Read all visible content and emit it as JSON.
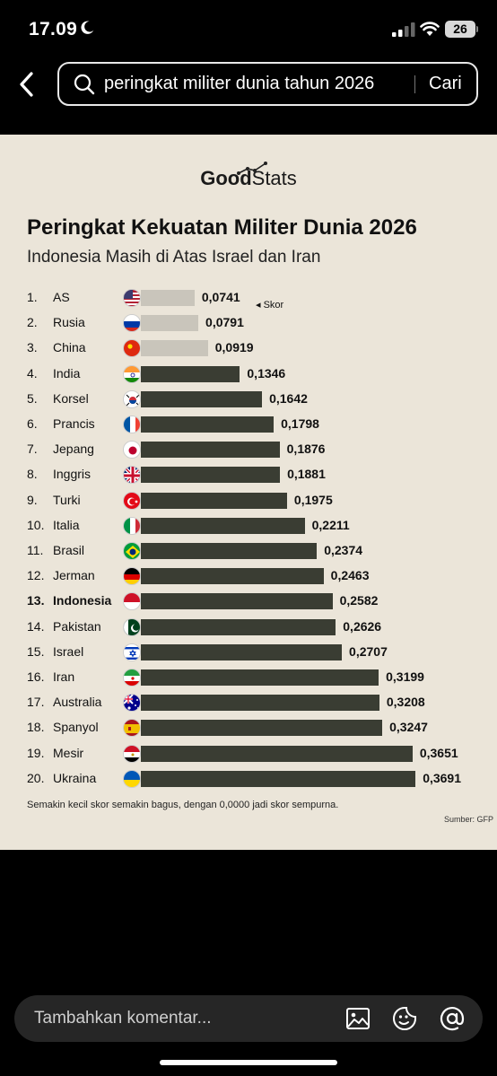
{
  "status_bar": {
    "time": "17.09",
    "battery": "26"
  },
  "search": {
    "query": "peringkat militer dunia tahun 2026",
    "button": "Cari"
  },
  "infographic": {
    "logo": "GoodStats",
    "logo_bold": "Good",
    "logo_light": "Stats",
    "title": "Peringkat Kekuatan Militer Dunia 2026",
    "subtitle": "Indonesia Masih di Atas Israel dan Iran",
    "skor_label": "◂ Skor",
    "footnote": "Semakin kecil skor semakin bagus, dengan 0,0000 jadi skor sempurna.",
    "source": "Sumber: GFP",
    "bar_color": "#3a3d33",
    "light_bar_color": "#c9c5bb",
    "rows": [
      {
        "rank": "1.",
        "name": "AS",
        "score": "0,0741",
        "value": 0.0741,
        "flag": "us"
      },
      {
        "rank": "2.",
        "name": "Rusia",
        "score": "0,0791",
        "value": 0.0791,
        "flag": "ru"
      },
      {
        "rank": "3.",
        "name": "China",
        "score": "0,0919",
        "value": 0.0919,
        "flag": "cn"
      },
      {
        "rank": "4.",
        "name": "India",
        "score": "0,1346",
        "value": 0.1346,
        "flag": "in"
      },
      {
        "rank": "5.",
        "name": "Korsel",
        "score": "0,1642",
        "value": 0.1642,
        "flag": "kr"
      },
      {
        "rank": "6.",
        "name": "Prancis",
        "score": "0,1798",
        "value": 0.1798,
        "flag": "fr"
      },
      {
        "rank": "7.",
        "name": "Jepang",
        "score": "0,1876",
        "value": 0.1876,
        "flag": "jp"
      },
      {
        "rank": "8.",
        "name": "Inggris",
        "score": "0,1881",
        "value": 0.1881,
        "flag": "gb"
      },
      {
        "rank": "9.",
        "name": "Turki",
        "score": "0,1975",
        "value": 0.1975,
        "flag": "tr"
      },
      {
        "rank": "10.",
        "name": "Italia",
        "score": "0,2211",
        "value": 0.2211,
        "flag": "it"
      },
      {
        "rank": "11.",
        "name": "Brasil",
        "score": "0,2374",
        "value": 0.2374,
        "flag": "br"
      },
      {
        "rank": "12.",
        "name": "Jerman",
        "score": "0,2463",
        "value": 0.2463,
        "flag": "de"
      },
      {
        "rank": "13.",
        "name": "Indonesia",
        "score": "0,2582",
        "value": 0.2582,
        "flag": "id",
        "highlight": true
      },
      {
        "rank": "14.",
        "name": "Pakistan",
        "score": "0,2626",
        "value": 0.2626,
        "flag": "pk"
      },
      {
        "rank": "15.",
        "name": "Israel",
        "score": "0,2707",
        "value": 0.2707,
        "flag": "il"
      },
      {
        "rank": "16.",
        "name": "Iran",
        "score": "0,3199",
        "value": 0.3199,
        "flag": "ir"
      },
      {
        "rank": "17.",
        "name": "Australia",
        "score": "0,3208",
        "value": 0.3208,
        "flag": "au"
      },
      {
        "rank": "18.",
        "name": "Spanyol",
        "score": "0,3247",
        "value": 0.3247,
        "flag": "es"
      },
      {
        "rank": "19.",
        "name": "Mesir",
        "score": "0,3651",
        "value": 0.3651,
        "flag": "eg"
      },
      {
        "rank": "20.",
        "name": "Ukraina",
        "score": "0,3691",
        "value": 0.3691,
        "flag": "ua"
      }
    ]
  },
  "chart_data": {
    "type": "bar",
    "title": "Peringkat Kekuatan Militer Dunia 2026",
    "subtitle": "Indonesia Masih di Atas Israel dan Iran",
    "orientation": "horizontal",
    "categories": [
      "AS",
      "Rusia",
      "China",
      "India",
      "Korsel",
      "Prancis",
      "Jepang",
      "Inggris",
      "Turki",
      "Italia",
      "Brasil",
      "Jerman",
      "Indonesia",
      "Pakistan",
      "Israel",
      "Iran",
      "Australia",
      "Spanyol",
      "Mesir",
      "Ukraina"
    ],
    "series": [
      {
        "name": "Skor",
        "values": [
          0.0741,
          0.0791,
          0.0919,
          0.1346,
          0.1642,
          0.1798,
          0.1876,
          0.1881,
          0.1975,
          0.2211,
          0.2374,
          0.2463,
          0.2582,
          0.2626,
          0.2707,
          0.3199,
          0.3208,
          0.3247,
          0.3651,
          0.3691
        ]
      }
    ],
    "xlabel": "",
    "ylabel": "",
    "grid": false,
    "legend": "none"
  },
  "comment": {
    "placeholder": "Tambahkan komentar..."
  }
}
